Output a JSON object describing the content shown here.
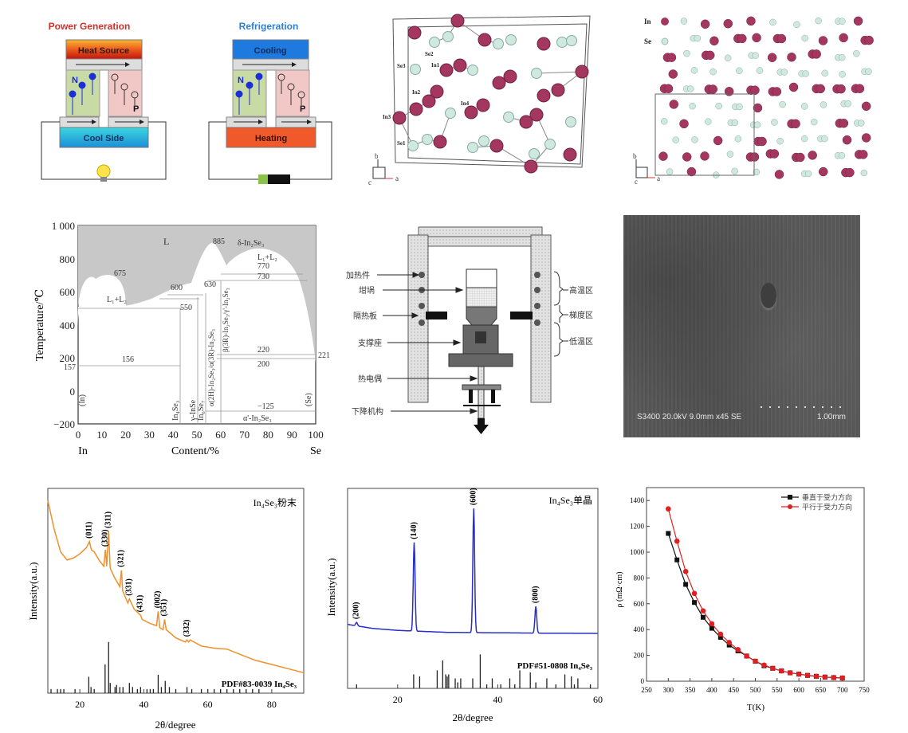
{
  "figures": {
    "thermoelectric": {
      "power": {
        "title": "Power Generation",
        "hot_label": "Heat Source",
        "cold_label": "Cool Side",
        "n_label": "N",
        "p_label": "P",
        "load": "light-bulb"
      },
      "refrigeration": {
        "title": "Refrigeration",
        "hot_label": "Cooling",
        "cold_label": "Heating",
        "n_label": "N",
        "p_label": "P",
        "load": "battery"
      },
      "colors": {
        "power_title": "#d4302a",
        "refrig_title": "#2f7fd0",
        "n_leg": "#c9dba4",
        "p_leg": "#f1c8c6",
        "electron": "#1c2fd6"
      }
    },
    "crystal_1": {
      "atom_labels": [
        "Se2",
        "Se3",
        "In1",
        "In2",
        "In3",
        "In4",
        "Se1"
      ],
      "axes": {
        "b": "b",
        "a": "a",
        "c": "c"
      },
      "colors": {
        "In": "#a3375f",
        "Se": "#cfe9dc"
      }
    },
    "crystal_2": {
      "legend": [
        {
          "label": "In",
          "color": "#a3375f"
        },
        {
          "label": "Se",
          "color": "#cfe9dc"
        }
      ],
      "axes": {
        "b": "b",
        "a": "a",
        "c": "c"
      }
    },
    "phase_diagram": {
      "ylabel": "Temperature/℃",
      "xlabel": "Content/%",
      "x_left": "In",
      "x_right": "Se",
      "y_ticks": [
        "1 000",
        "800",
        "600",
        "400",
        "200",
        "0",
        "−200"
      ],
      "x_ticks": [
        "0",
        "10",
        "20",
        "30",
        "40",
        "50",
        "60",
        "70",
        "80",
        "90",
        "100"
      ],
      "labels": {
        "L": "L",
        "L1L2_left": "L₁+L₂",
        "L1L2_right": "L₁+L₂",
        "t675": "675",
        "t600": "600",
        "t550": "550",
        "t630": "630",
        "t885": "885",
        "t770": "770",
        "t730": "730",
        "t220": "220",
        "t200": "200",
        "t221": "221",
        "t156": "156",
        "t157": "157",
        "tm125": "−125",
        "delta": "δ-In₂Se₃",
        "In_side": "(In)",
        "Se_side": "(Se)",
        "in4se3": "In₄Se₃",
        "gamma_inse": "γ-InSe",
        "in6se7": "In₆Se₇",
        "alpha": "α(2H)-In₂Se₃/α(3R)-In₂Se₃",
        "beta": "β(3R)-In₂Se₃/γ'-In₂Se₃",
        "alpha_prime": "α'-In₂Se₃"
      }
    },
    "furnace": {
      "left_labels": [
        "加热件",
        "坩埚",
        "隔热板",
        "支撑座",
        "热电偶",
        "下降机构"
      ],
      "right_labels": [
        "高温区",
        "梯度区",
        "低温区"
      ]
    },
    "sem": {
      "caption": "S3400 20.0kV 9.0mm x45 SE",
      "scale_label": "1.00mm"
    }
  },
  "chart_data": [
    {
      "type": "line",
      "title": "In₄Se₃粉末",
      "xlabel": "2θ/degree",
      "ylabel": "Intensity(a.u.)",
      "xlim": [
        10,
        90
      ],
      "x_ticks": [
        20,
        40,
        60,
        80
      ],
      "color": "#f0902a",
      "reference_label": "PDF#83-0039 In₄Se₃",
      "peaks": [
        {
          "hkl": "(011)",
          "x": 23.0
        },
        {
          "hkl": "(330)",
          "x": 28.0
        },
        {
          "hkl": "(311)",
          "x": 29.0
        },
        {
          "hkl": "(321)",
          "x": 33.0
        },
        {
          "hkl": "(331)",
          "x": 35.5
        },
        {
          "hkl": "(431)",
          "x": 39.0
        },
        {
          "hkl": "(002)",
          "x": 44.5
        },
        {
          "hkl": "(351)",
          "x": 46.5
        },
        {
          "hkl": "(332)",
          "x": 53.5
        }
      ],
      "curve": [
        [
          10,
          0.94
        ],
        [
          12,
          0.8
        ],
        [
          14,
          0.69
        ],
        [
          16,
          0.65
        ],
        [
          18,
          0.66
        ],
        [
          20,
          0.68
        ],
        [
          22,
          0.71
        ],
        [
          23,
          0.74
        ],
        [
          23.6,
          0.7
        ],
        [
          24.5,
          0.69
        ],
        [
          26,
          0.65
        ],
        [
          27.5,
          0.62
        ],
        [
          28,
          0.7
        ],
        [
          28.4,
          0.62
        ],
        [
          29,
          0.79
        ],
        [
          29.5,
          0.61
        ],
        [
          31,
          0.56
        ],
        [
          32.5,
          0.52
        ],
        [
          33,
          0.6
        ],
        [
          33.4,
          0.5
        ],
        [
          35,
          0.44
        ],
        [
          35.5,
          0.46
        ],
        [
          37,
          0.41
        ],
        [
          39,
          0.38
        ],
        [
          39.5,
          0.36
        ],
        [
          42,
          0.34
        ],
        [
          44,
          0.33
        ],
        [
          44.5,
          0.4
        ],
        [
          45,
          0.32
        ],
        [
          46,
          0.31
        ],
        [
          46.5,
          0.36
        ],
        [
          47,
          0.31
        ],
        [
          50,
          0.27
        ],
        [
          53,
          0.25
        ],
        [
          53.5,
          0.26
        ],
        [
          54,
          0.25
        ],
        [
          54.5,
          0.26
        ],
        [
          58,
          0.23
        ],
        [
          62,
          0.22
        ],
        [
          66,
          0.215
        ],
        [
          70,
          0.19
        ],
        [
          75,
          0.16
        ],
        [
          80,
          0.14
        ],
        [
          85,
          0.12
        ],
        [
          90,
          0.1
        ]
      ],
      "reference_sticks": [
        [
          11,
          0.02
        ],
        [
          13,
          0.02
        ],
        [
          14,
          0.02
        ],
        [
          15,
          0.02
        ],
        [
          18.5,
          0.02
        ],
        [
          22.8,
          0.08
        ],
        [
          23.5,
          0.03
        ],
        [
          24.5,
          0.02
        ],
        [
          27.9,
          0.14
        ],
        [
          29,
          0.25
        ],
        [
          29.5,
          0.05
        ],
        [
          31,
          0.03
        ],
        [
          31.5,
          0.04
        ],
        [
          32.5,
          0.03
        ],
        [
          33.5,
          0.03
        ],
        [
          35.5,
          0.05
        ],
        [
          36.5,
          0.03
        ],
        [
          38,
          0.02
        ],
        [
          39,
          0.03
        ],
        [
          41,
          0.02
        ],
        [
          42,
          0.02
        ],
        [
          43,
          0.02
        ],
        [
          44.5,
          0.09
        ],
        [
          45.5,
          0.03
        ],
        [
          46.7,
          0.06
        ],
        [
          48,
          0.03
        ],
        [
          50,
          0.02
        ],
        [
          53.5,
          0.03
        ],
        [
          55,
          0.02
        ],
        [
          58,
          0.02
        ],
        [
          60,
          0.02
        ],
        [
          62,
          0.02
        ],
        [
          64,
          0.02
        ],
        [
          66,
          0.02
        ],
        [
          68,
          0.02
        ],
        [
          70,
          0.02
        ],
        [
          72,
          0.02
        ],
        [
          74,
          0.02
        ],
        [
          76,
          0.02
        ]
      ]
    },
    {
      "type": "line",
      "title": "In₄Se₃单晶",
      "xlabel": "2θ/degree",
      "ylabel": "Intensity(a.u.)",
      "xlim": [
        10,
        60
      ],
      "x_ticks": [
        20,
        40,
        60
      ],
      "color": "#2a2fc4",
      "reference_label": "PDF#51-0808 In₄Se₃",
      "peaks": [
        {
          "hkl": "(200)",
          "x": 11.8,
          "y": 0.33
        },
        {
          "hkl": "(140)",
          "x": 23.3,
          "y": 0.73
        },
        {
          "hkl": "(600)",
          "x": 35.2,
          "y": 0.9
        },
        {
          "hkl": "(800)",
          "x": 47.6,
          "y": 0.41
        }
      ],
      "baseline": [
        [
          10,
          0.32
        ],
        [
          15,
          0.3
        ],
        [
          20,
          0.29
        ],
        [
          25,
          0.285
        ],
        [
          30,
          0.28
        ],
        [
          40,
          0.278
        ],
        [
          50,
          0.276
        ],
        [
          60,
          0.275
        ]
      ],
      "reference_sticks": [
        [
          11.8,
          0.02
        ],
        [
          23.2,
          0.07
        ],
        [
          24.4,
          0.06
        ],
        [
          27.9,
          0.09
        ],
        [
          29.0,
          0.14
        ],
        [
          29.6,
          0.07
        ],
        [
          29.9,
          0.06
        ],
        [
          30.2,
          0.07
        ],
        [
          31.5,
          0.05
        ],
        [
          32.0,
          0.03
        ],
        [
          32.6,
          0.05
        ],
        [
          35.0,
          0.05
        ],
        [
          36.5,
          0.17
        ],
        [
          37.8,
          0.02
        ],
        [
          38.9,
          0.05
        ],
        [
          40.6,
          0.02
        ],
        [
          42.4,
          0.05
        ],
        [
          43.4,
          0.02
        ],
        [
          44.4,
          0.09
        ],
        [
          46.5,
          0.08
        ],
        [
          47.6,
          0.03
        ],
        [
          49.8,
          0.05
        ],
        [
          51.6,
          0.02
        ],
        [
          53.4,
          0.07
        ],
        [
          54.7,
          0.06
        ],
        [
          55.3,
          0.02
        ],
        [
          56.0,
          0.05
        ],
        [
          58.5,
          0.02
        ]
      ]
    },
    {
      "type": "line",
      "xlabel": "T(K)",
      "ylabel": "ρ (mΩ·cm)",
      "xlim": [
        250,
        750
      ],
      "ylim": [
        0,
        1500
      ],
      "x_ticks": [
        250,
        300,
        350,
        400,
        450,
        500,
        550,
        600,
        650,
        700,
        750
      ],
      "y_ticks": [
        0,
        200,
        400,
        600,
        800,
        1000,
        1200,
        1400
      ],
      "legend": "top-right",
      "series": [
        {
          "name": "垂直于受力方向",
          "color": "#111111",
          "marker": "square",
          "x": [
            300,
            320,
            340,
            360,
            380,
            400,
            420,
            440,
            460,
            480,
            500,
            520,
            540,
            560,
            580,
            600,
            620,
            640,
            660,
            680,
            700
          ],
          "y": [
            1145,
            940,
            750,
            610,
            495,
            410,
            340,
            280,
            235,
            195,
            155,
            120,
            100,
            80,
            65,
            55,
            45,
            38,
            32,
            28,
            25
          ]
        },
        {
          "name": "平行于受力方向",
          "color": "#e02020",
          "marker": "circle",
          "x": [
            300,
            320,
            340,
            360,
            380,
            400,
            420,
            440,
            460,
            480,
            500,
            520,
            540,
            560,
            580,
            600,
            620,
            640,
            660,
            680,
            700
          ],
          "y": [
            1335,
            1085,
            850,
            680,
            545,
            445,
            365,
            300,
            245,
            195,
            155,
            125,
            100,
            80,
            65,
            55,
            45,
            38,
            32,
            28,
            25
          ]
        }
      ]
    }
  ]
}
